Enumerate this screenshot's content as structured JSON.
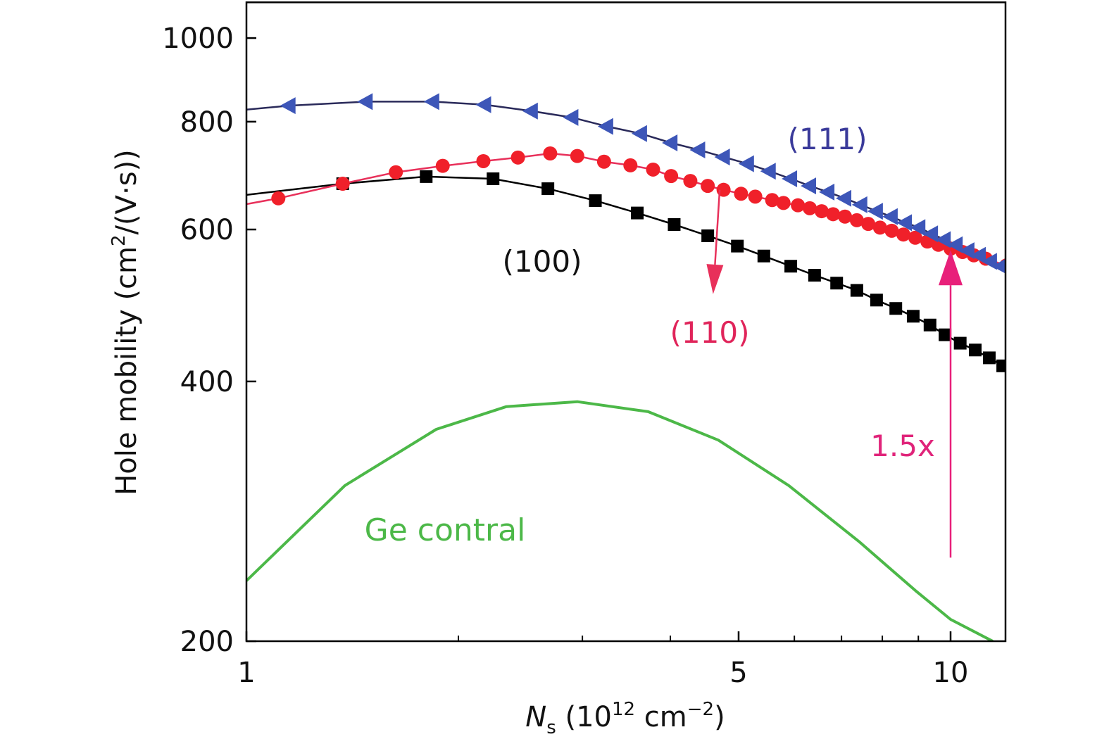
{
  "chart_data": {
    "type": "line",
    "xlabel_main": "N",
    "xlabel_sub": "s",
    "xlabel_unit_pre": " (10",
    "xlabel_unit_sup": "12",
    "xlabel_unit_mid": " cm",
    "xlabel_unit_sup2": "−2",
    "xlabel_unit_post": ")",
    "ylabel_pre": "Hole mobility (cm",
    "ylabel_sup": "2",
    "ylabel_post": "/(V·s))",
    "x_scale": "log",
    "y_scale": "log",
    "xlim": [
      1,
      12
    ],
    "ylim": [
      200,
      1100
    ],
    "x_ticks": [
      {
        "value": 1,
        "label": "1"
      },
      {
        "value": 5,
        "label": "5"
      },
      {
        "value": 10,
        "label": "10"
      }
    ],
    "x_minor_ticks": [
      2,
      3,
      4,
      6,
      7,
      8,
      9
    ],
    "y_ticks": [
      {
        "value": 200,
        "label": "200"
      },
      {
        "value": 400,
        "label": "400"
      },
      {
        "value": 600,
        "label": "600"
      },
      {
        "value": 800,
        "label": "800"
      },
      {
        "value": 1000,
        "label": "1000"
      }
    ],
    "grid": false,
    "series": [
      {
        "label": "(111)",
        "color": "#3d56b8",
        "line_color": "#2a2a5a",
        "marker": "triangle-left",
        "line_start": [
          1,
          826
        ],
        "x": [
          1.15,
          1.48,
          1.84,
          2.18,
          2.54,
          2.9,
          3.25,
          3.63,
          4.01,
          4.39,
          4.76,
          5.15,
          5.53,
          5.93,
          6.31,
          6.7,
          7.08,
          7.46,
          7.85,
          8.24,
          8.63,
          9.02,
          9.4,
          9.8,
          10.19,
          10.59,
          10.99,
          11.4,
          11.8
        ],
        "y": [
          835,
          844,
          844,
          837,
          823,
          809,
          790,
          775,
          756,
          742,
          728,
          715,
          701,
          687,
          674,
          663,
          652,
          641,
          630,
          621,
          611,
          603,
          593,
          584,
          576,
          567,
          560,
          551,
          544
        ]
      },
      {
        "label": "(110)",
        "color": "#f0202a",
        "line_color": "#e8305a",
        "marker": "circle",
        "line_start": [
          1,
          642
        ],
        "x": [
          1.11,
          1.37,
          1.63,
          1.9,
          2.17,
          2.43,
          2.7,
          2.95,
          3.22,
          3.51,
          3.78,
          4.01,
          4.27,
          4.52,
          4.76,
          5.04,
          5.28,
          5.58,
          5.79,
          6.07,
          6.31,
          6.56,
          6.81,
          7.08,
          7.36,
          7.64,
          7.94,
          8.25,
          8.57,
          8.91,
          9.27,
          9.61,
          10.0,
          10.4,
          10.79,
          11.22,
          12.0
        ],
        "y": [
          652,
          678,
          699,
          711,
          720,
          727,
          735,
          730,
          719,
          712,
          704,
          692,
          683,
          674,
          667,
          660,
          655,
          649,
          644,
          640,
          635,
          630,
          625,
          621,
          615,
          609,
          603,
          598,
          592,
          587,
          581,
          576,
          570,
          565,
          560,
          555,
          545
        ]
      },
      {
        "label": "(100)",
        "color": "#000000",
        "line_color": "#000000",
        "marker": "square",
        "line_start": [
          1,
          658
        ],
        "x": [
          1.37,
          1.8,
          2.24,
          2.68,
          3.13,
          3.59,
          4.05,
          4.52,
          4.98,
          5.43,
          5.93,
          6.41,
          6.89,
          7.36,
          7.85,
          8.36,
          8.85,
          9.35,
          9.82,
          10.32,
          10.84,
          11.35,
          11.86
        ],
        "y": [
          678,
          691,
          687,
          669,
          648,
          627,
          608,
          590,
          574,
          559,
          544,
          531,
          520,
          510,
          497,
          486,
          476,
          465,
          453,
          443,
          435,
          426,
          417
        ]
      },
      {
        "label": "Ge contral",
        "color": "#4cb848",
        "marker": "none",
        "x": [
          1,
          1.38,
          1.86,
          2.34,
          2.95,
          3.72,
          4.68,
          5.89,
          7.41,
          8.91,
          10.0,
          11.48
        ],
        "y": [
          235,
          303,
          352,
          374,
          379,
          369,
          342,
          303,
          261,
          229,
          212,
          200
        ]
      }
    ],
    "annotations": [
      {
        "text": "(111)",
        "color": "#3a3a9a"
      },
      {
        "text": "(100)",
        "color": "#111111"
      },
      {
        "text": "(110)",
        "color": "#e0245a"
      },
      {
        "text": "Ge contral",
        "color": "#4cb848"
      },
      {
        "text": "1.5x",
        "color": "#e0247a"
      }
    ],
    "arrows": [
      {
        "name": "110-arrow",
        "color": "#e8305a",
        "from": [
          4.7,
          667
        ],
        "to": [
          4.6,
          505
        ]
      },
      {
        "name": "ratio-arrow",
        "color": "#e8207a",
        "from": [
          10,
          250
        ],
        "to": [
          10,
          568
        ]
      }
    ]
  }
}
